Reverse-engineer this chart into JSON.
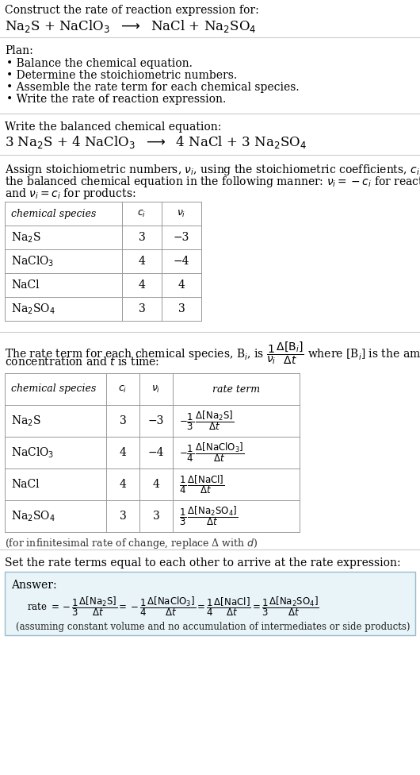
{
  "bg_color": "#ffffff",
  "text_color": "#000000",
  "table_border_color": "#999999",
  "answer_box_color": "#e8f4f8",
  "answer_box_border": "#99bbcc",
  "section1_title": "Construct the rate of reaction expression for:",
  "section1_reaction": "Na$_2$S + NaClO$_3$  $\\longrightarrow$  NaCl + Na$_2$SO$_4$",
  "plan_title": "Plan:",
  "plan_items": [
    "• Balance the chemical equation.",
    "• Determine the stoichiometric numbers.",
    "• Assemble the rate term for each chemical species.",
    "• Write the rate of reaction expression."
  ],
  "balanced_title": "Write the balanced chemical equation:",
  "balanced_eq": "3 Na$_2$S + 4 NaClO$_3$  $\\longrightarrow$  4 NaCl + 3 Na$_2$SO$_4$",
  "stoich_intro_lines": [
    "Assign stoichiometric numbers, $\\nu_i$, using the stoichiometric coefficients, $c_i$, from",
    "the balanced chemical equation in the following manner: $\\nu_i = -c_i$ for reactants",
    "and $\\nu_i = c_i$ for products:"
  ],
  "table1_headers": [
    "chemical species",
    "$c_i$",
    "$\\nu_i$"
  ],
  "table1_rows": [
    [
      "Na$_2$S",
      "3",
      "−3"
    ],
    [
      "NaClO$_3$",
      "4",
      "−4"
    ],
    [
      "NaCl",
      "4",
      "4"
    ],
    [
      "Na$_2$SO$_4$",
      "3",
      "3"
    ]
  ],
  "rate_term_intro_lines": [
    "The rate term for each chemical species, B$_i$, is $\\dfrac{1}{\\nu_i}\\dfrac{\\Delta[\\mathrm{B}_i]}{\\Delta t}$ where [B$_i$] is the amount",
    "concentration and $t$ is time:"
  ],
  "table2_headers": [
    "chemical species",
    "$c_i$",
    "$\\nu_i$",
    "rate term"
  ],
  "table2_rows": [
    [
      "Na$_2$S",
      "3",
      "−3",
      "$-\\dfrac{1}{3}\\,\\dfrac{\\Delta[\\mathrm{Na_2S}]}{\\Delta t}$"
    ],
    [
      "NaClO$_3$",
      "4",
      "−4",
      "$-\\dfrac{1}{4}\\,\\dfrac{\\Delta[\\mathrm{NaClO_3}]}{\\Delta t}$"
    ],
    [
      "NaCl",
      "4",
      "4",
      "$\\dfrac{1}{4}\\,\\dfrac{\\Delta[\\mathrm{NaCl}]}{\\Delta t}$"
    ],
    [
      "Na$_2$SO$_4$",
      "3",
      "3",
      "$\\dfrac{1}{3}\\,\\dfrac{\\Delta[\\mathrm{Na_2SO_4}]}{\\Delta t}$"
    ]
  ],
  "infinitesimal_note": "(for infinitesimal rate of change, replace Δ with $d$)",
  "rate_set_intro": "Set the rate terms equal to each other to arrive at the rate expression:",
  "answer_label": "Answer:",
  "rate_expression": "rate $= -\\dfrac{1}{3}\\dfrac{\\Delta[\\mathrm{Na_2S}]}{\\Delta t} = -\\dfrac{1}{4}\\dfrac{\\Delta[\\mathrm{NaClO_3}]}{\\Delta t} = \\dfrac{1}{4}\\dfrac{\\Delta[\\mathrm{NaCl}]}{\\Delta t} = \\dfrac{1}{3}\\dfrac{\\Delta[\\mathrm{Na_2SO_4}]}{\\Delta t}$",
  "assuming_note": "(assuming constant volume and no accumulation of intermediates or side products)"
}
